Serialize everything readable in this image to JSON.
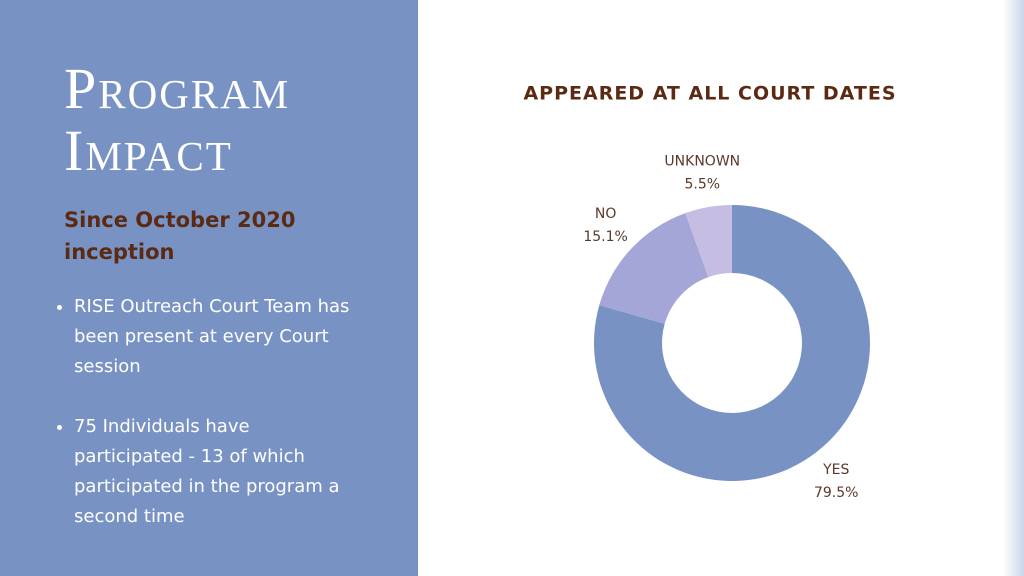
{
  "header": {
    "title": "Program Impact",
    "subtitle": "Since October 2020 inception"
  },
  "bullets": [
    "RISE Outreach Court Team has been present at every Court session",
    "75 Individuals have participated - 13 of which participated in the program a second time"
  ],
  "chart_data": {
    "type": "donut",
    "title": "APPEARED AT ALL COURT DATES",
    "categories": [
      "YES",
      "NO",
      "UNKNOWN"
    ],
    "values": [
      79.5,
      15.1,
      5.5
    ],
    "value_labels": [
      "79.5%",
      "15.1%",
      "5.5%"
    ],
    "colors": [
      "#7892c4",
      "#a3a6d6",
      "#c6bde3"
    ]
  }
}
